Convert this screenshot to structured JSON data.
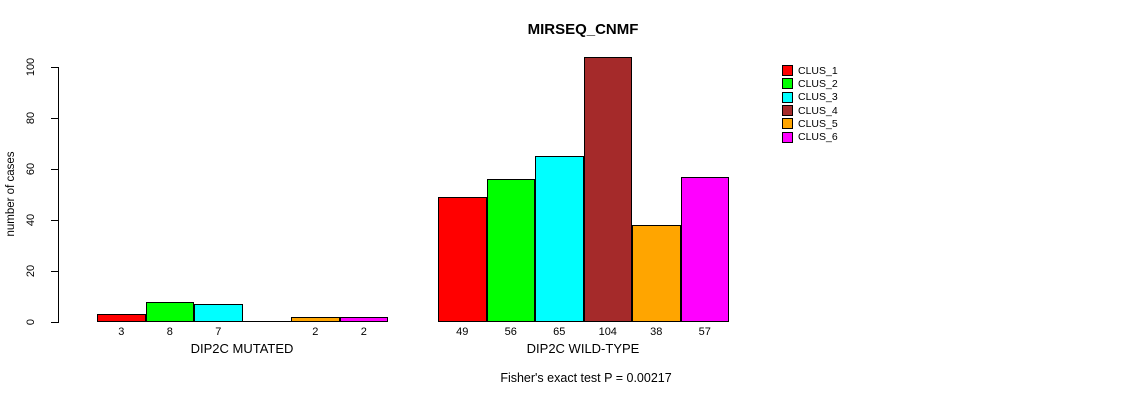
{
  "chart": {
    "title": "MIRSEQ_CNMF",
    "ylabel": "number of cases",
    "footer": "Fisher's exact test P = 0.00217"
  },
  "chart_data": {
    "type": "bar",
    "title": "MIRSEQ_CNMF",
    "xlabel": "",
    "ylabel": "number of cases",
    "ylim": [
      0,
      100
    ],
    "yticks": [
      0,
      20,
      40,
      60,
      80,
      100
    ],
    "grid": false,
    "legend_position": "top-right",
    "categories": [
      "DIP2C MUTATED",
      "DIP2C WILD-TYPE"
    ],
    "series": [
      {
        "name": "CLUS_1",
        "color": "#FF0000",
        "values": [
          3,
          49
        ]
      },
      {
        "name": "CLUS_2",
        "color": "#00FF00",
        "values": [
          8,
          56
        ]
      },
      {
        "name": "CLUS_3",
        "color": "#00FFFF",
        "values": [
          7,
          65
        ]
      },
      {
        "name": "CLUS_4",
        "color": "#A52A2A",
        "values": [
          0,
          104
        ]
      },
      {
        "name": "CLUS_5",
        "color": "#FFA500",
        "values": [
          2,
          38
        ]
      },
      {
        "name": "CLUS_6",
        "color": "#FF00FF",
        "values": [
          2,
          57
        ]
      }
    ],
    "annotation": "Fisher's exact test P = 0.00217"
  }
}
